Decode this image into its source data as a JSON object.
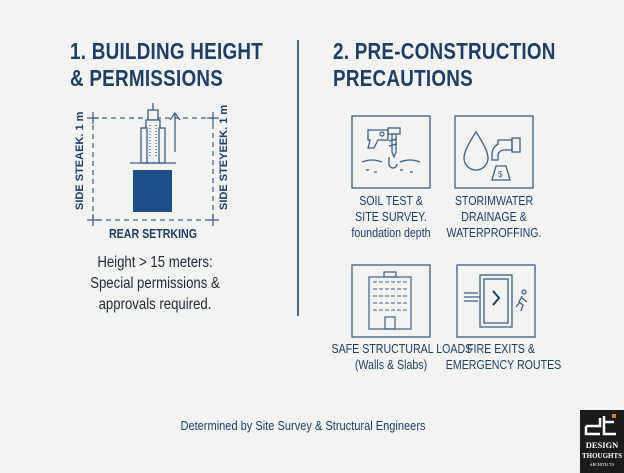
{
  "left": {
    "title_line1": "1. BUILDING HEIGHT",
    "title_line2": "& PERMISSIONS",
    "diagram": {
      "left_label": "SIDE STEAEK. 1 m",
      "right_label": "SIDE STEYEEK. 1 m",
      "bottom_label": "REAR SETRKING"
    },
    "note_lines": [
      "Height > 15 meters:",
      "Special permissions &",
      "approvals required."
    ]
  },
  "right": {
    "title_line1": "2. PRE-CONSTRUCTION",
    "title_line2": "PRECAUTIONS",
    "items": [
      {
        "icon": "soil-drill-icon",
        "lines": [
          "SOIL TEST &",
          "SITE SURVEY.",
          "foundation depth"
        ]
      },
      {
        "icon": "water-drop-tap-icon",
        "lines": [
          "STORIMWATER",
          "DRAINAGE &",
          "WATERPROFFING."
        ]
      },
      {
        "icon": "building-icon",
        "lines": [
          "SAFE STRUCTURAL LOADS",
          "(Walls & Slabs)"
        ]
      },
      {
        "icon": "fire-exit-icon",
        "lines": [
          "FIRE EXITS &",
          "EMERGENCY ROUTES"
        ]
      }
    ]
  },
  "footer": "Determined by Site Survey & Structural Engineers",
  "logo": {
    "mark": "dt",
    "line1": "DESIGN",
    "line2": "THOUGHTS",
    "line3": "ARCHITECTS"
  },
  "colors": {
    "primary": "#1f3e66",
    "accent_fill": "#1d4f8c",
    "icon_stroke": "#3d5f84",
    "background": "#f3f4f2"
  }
}
